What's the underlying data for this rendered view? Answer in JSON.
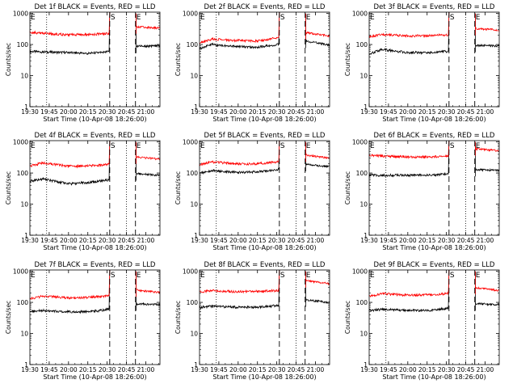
{
  "colors": {
    "events": "#000000",
    "lld": "#ff0000",
    "background": "#ffffff",
    "axes": "#000000"
  },
  "shared": {
    "xlabel": "Start Time (10-Apr-08 18:26:00)",
    "ylabel": "Counts/sec",
    "xticks": [
      "19:30",
      "19:45",
      "20:00",
      "20:15",
      "20:30",
      "20:45",
      "21:00"
    ],
    "xtick_minutes": [
      0,
      15,
      30,
      45,
      60,
      75,
      90
    ],
    "yticks": [
      "1",
      "10",
      "100",
      "1000"
    ],
    "ytick_values": [
      1,
      10,
      100,
      1000
    ],
    "xlim_minutes": [
      0,
      101
    ],
    "ylim": [
      1,
      1100
    ],
    "yscale": "log",
    "marker_labels": {
      "e_left": "E",
      "s": "S",
      "e_right": "E"
    },
    "markers_minutes": {
      "e_left": 0,
      "dotted1": 13,
      "dashed_s": 62,
      "dotted2": 75,
      "dashed_e": 82,
      "right_edge": 101
    }
  },
  "chart_data": [
    {
      "type": "line",
      "title": "Det 1f BLACK = Events, RED = LLD",
      "series": [
        {
          "name": "Events",
          "values": [
            60,
            58,
            55,
            52,
            55,
            60,
            88,
            90
          ]
        },
        {
          "name": "LLD",
          "values": [
            250,
            230,
            205,
            210,
            220,
            225,
            370,
            340
          ]
        }
      ]
    },
    {
      "type": "line",
      "title": "Det 2f BLACK = Events, RED = LLD",
      "series": [
        {
          "name": "Events",
          "values": [
            75,
            100,
            85,
            80,
            95,
            100,
            130,
            95
          ]
        },
        {
          "name": "LLD",
          "values": [
            115,
            150,
            135,
            130,
            150,
            170,
            240,
            190
          ]
        }
      ]
    },
    {
      "type": "line",
      "title": "Det 3f BLACK = Events, RED = LLD",
      "series": [
        {
          "name": "Events",
          "values": [
            50,
            70,
            55,
            55,
            60,
            60,
            95,
            90
          ]
        },
        {
          "name": "LLD",
          "values": [
            180,
            210,
            190,
            190,
            200,
            205,
            330,
            290
          ]
        }
      ]
    },
    {
      "type": "line",
      "title": "Det 4f BLACK = Events, RED = LLD",
      "series": [
        {
          "name": "Events",
          "values": [
            55,
            65,
            45,
            50,
            55,
            60,
            95,
            85
          ]
        },
        {
          "name": "LLD",
          "values": [
            170,
            210,
            165,
            170,
            180,
            190,
            330,
            280
          ]
        }
      ]
    },
    {
      "type": "line",
      "title": "Det 5f BLACK = Events, RED = LLD",
      "series": [
        {
          "name": "Events",
          "values": [
            100,
            120,
            105,
            110,
            120,
            130,
            190,
            160
          ]
        },
        {
          "name": "LLD",
          "values": [
            190,
            230,
            195,
            200,
            220,
            230,
            380,
            300
          ]
        }
      ]
    },
    {
      "type": "line",
      "title": "Det 6f BLACK = Events, RED = LLD",
      "series": [
        {
          "name": "Events",
          "values": [
            85,
            85,
            85,
            85,
            90,
            95,
            130,
            120
          ]
        },
        {
          "name": "LLD",
          "values": [
            380,
            350,
            330,
            330,
            345,
            355,
            600,
            520
          ]
        }
      ]
    },
    {
      "type": "line",
      "title": "Det 7f BLACK = Events, RED = LLD",
      "series": [
        {
          "name": "Events",
          "values": [
            50,
            55,
            50,
            50,
            55,
            60,
            90,
            85
          ]
        },
        {
          "name": "LLD",
          "values": [
            130,
            160,
            140,
            145,
            155,
            165,
            250,
            210
          ]
        }
      ]
    },
    {
      "type": "line",
      "title": "Det 8f BLACK = Events, RED = LLD",
      "series": [
        {
          "name": "Events",
          "values": [
            70,
            75,
            70,
            70,
            75,
            80,
            120,
            100
          ]
        },
        {
          "name": "LLD",
          "values": [
            220,
            240,
            220,
            225,
            235,
            245,
            500,
            400
          ]
        }
      ]
    },
    {
      "type": "line",
      "title": "Det 9f BLACK = Events, RED = LLD",
      "series": [
        {
          "name": "Events",
          "values": [
            55,
            60,
            55,
            55,
            60,
            65,
            90,
            85
          ]
        },
        {
          "name": "LLD",
          "values": [
            160,
            190,
            170,
            175,
            185,
            195,
            300,
            240
          ]
        }
      ]
    }
  ]
}
